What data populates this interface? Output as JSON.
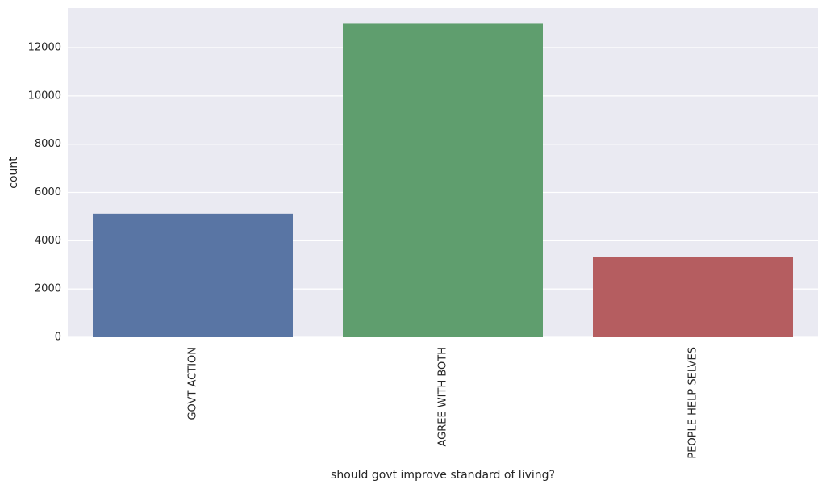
{
  "chart_data": {
    "type": "bar",
    "title": "",
    "xlabel": "should govt improve standard of living?",
    "ylabel": "count",
    "categories": [
      "GOVT ACTION",
      "AGREE WITH BOTH",
      "PEOPLE HELP SELVES"
    ],
    "values": [
      5120,
      12990,
      3310
    ],
    "ylim": [
      0,
      13640
    ],
    "yticks": [
      0,
      2000,
      4000,
      6000,
      8000,
      10000,
      12000
    ],
    "ytick_labels": [
      "0",
      "2000",
      "4000",
      "6000",
      "8000",
      "10000",
      "12000"
    ],
    "colors": [
      "#5975a4",
      "#5f9e6e",
      "#b55d60"
    ],
    "background": "#eaeaf2",
    "grid": true,
    "grid_color": "#ffffff",
    "x_tick_rotation": "vertical",
    "legend": "none"
  }
}
